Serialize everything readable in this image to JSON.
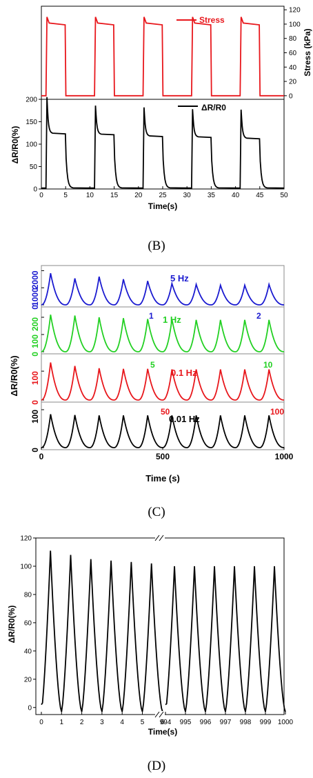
{
  "panel_b": {
    "caption": "(B)",
    "chart_data": {
      "type": "line",
      "xlabel": "Time(s)",
      "xlim": [
        0,
        50
      ],
      "x_ticks": [
        "0",
        "5",
        "10",
        "15",
        "20",
        "25",
        "30",
        "35",
        "40",
        "45",
        "50"
      ],
      "top": {
        "series": [
          {
            "name": "Stress",
            "color": "#e8161b"
          }
        ],
        "ylabel": "Stress (kPa)",
        "ylim": [
          -5,
          125
        ],
        "y_ticks": [
          "0",
          "20",
          "40",
          "60",
          "80",
          "100",
          "120"
        ],
        "cycle_period_s": 10,
        "on_start_s": [
          1,
          11,
          21,
          31,
          41
        ],
        "on_end_s": [
          5,
          15,
          25,
          35,
          45
        ],
        "peak": 110,
        "plateau": 100,
        "baseline": 0
      },
      "bottom": {
        "series": [
          {
            "name": "ΔR/R0",
            "color": "#000000"
          }
        ],
        "ylabel": "ΔR/R0(%)",
        "ylim": [
          0,
          200
        ],
        "y_ticks": [
          "0",
          "50",
          "100",
          "150",
          "200"
        ],
        "peaks": [
          205,
          186,
          182,
          178,
          177
        ],
        "plateaus": [
          123,
          121,
          117,
          115,
          112
        ],
        "baseline": 2
      }
    }
  },
  "panel_c": {
    "caption": "(C)",
    "chart_data": {
      "type": "line",
      "xlabel": "Time (s)",
      "ylabel": "ΔR/R0(%)",
      "xlim": [
        0,
        1000
      ],
      "x_ticks": [
        "0",
        "500",
        "1000"
      ],
      "cycles": 10,
      "rows": [
        {
          "freq": "5 Hz",
          "color": "#1a1ad0",
          "y_ticks": [
            "0",
            "1000",
            "2000"
          ],
          "ymax": 2300,
          "peaks": [
            1850,
            1550,
            1650,
            1500,
            1400,
            1250,
            1200,
            1150,
            1150,
            1200
          ],
          "marks": [
            "1",
            "2"
          ]
        },
        {
          "freq": "1 Hz",
          "color": "#22d022",
          "y_ticks": [
            "0",
            "100",
            "200"
          ],
          "ymax": 260,
          "peaks": [
            215,
            210,
            200,
            195,
            190,
            188,
            185,
            185,
            185,
            185
          ],
          "marks": [
            "5",
            "10"
          ]
        },
        {
          "freq": "0.1 Hz",
          "color": "#e8161b",
          "y_ticks": [
            "0",
            "100"
          ],
          "ymax": 160,
          "peaks": [
            130,
            118,
            110,
            108,
            108,
            106,
            106,
            106,
            106,
            106
          ],
          "marks": [
            "50",
            "100"
          ]
        },
        {
          "freq": "0.01 Hz",
          "color": "#000000",
          "y_ticks": [
            "0",
            "100"
          ],
          "ymax": 120,
          "peaks": [
            88,
            86,
            85,
            85,
            85,
            85,
            85,
            85,
            85,
            85
          ],
          "marks": []
        }
      ]
    }
  },
  "panel_d": {
    "caption": "(D)",
    "chart_data": {
      "type": "line",
      "xlabel": "Time(s)",
      "ylabel": "ΔR/R0(%)",
      "ylim": [
        -5,
        120
      ],
      "y_ticks": [
        "0",
        "20",
        "40",
        "60",
        "80",
        "100",
        "120"
      ],
      "x_ticks_left": [
        "0",
        "1",
        "2",
        "3",
        "4",
        "5",
        "6"
      ],
      "x_ticks_right": [
        "994",
        "995",
        "996",
        "997",
        "998",
        "999",
        "1000"
      ],
      "axis_break": "//",
      "peaks_left": [
        111,
        108,
        105,
        104,
        103,
        102
      ],
      "peaks_right": [
        100,
        100,
        100,
        100,
        100,
        100
      ],
      "trough": -3
    }
  }
}
